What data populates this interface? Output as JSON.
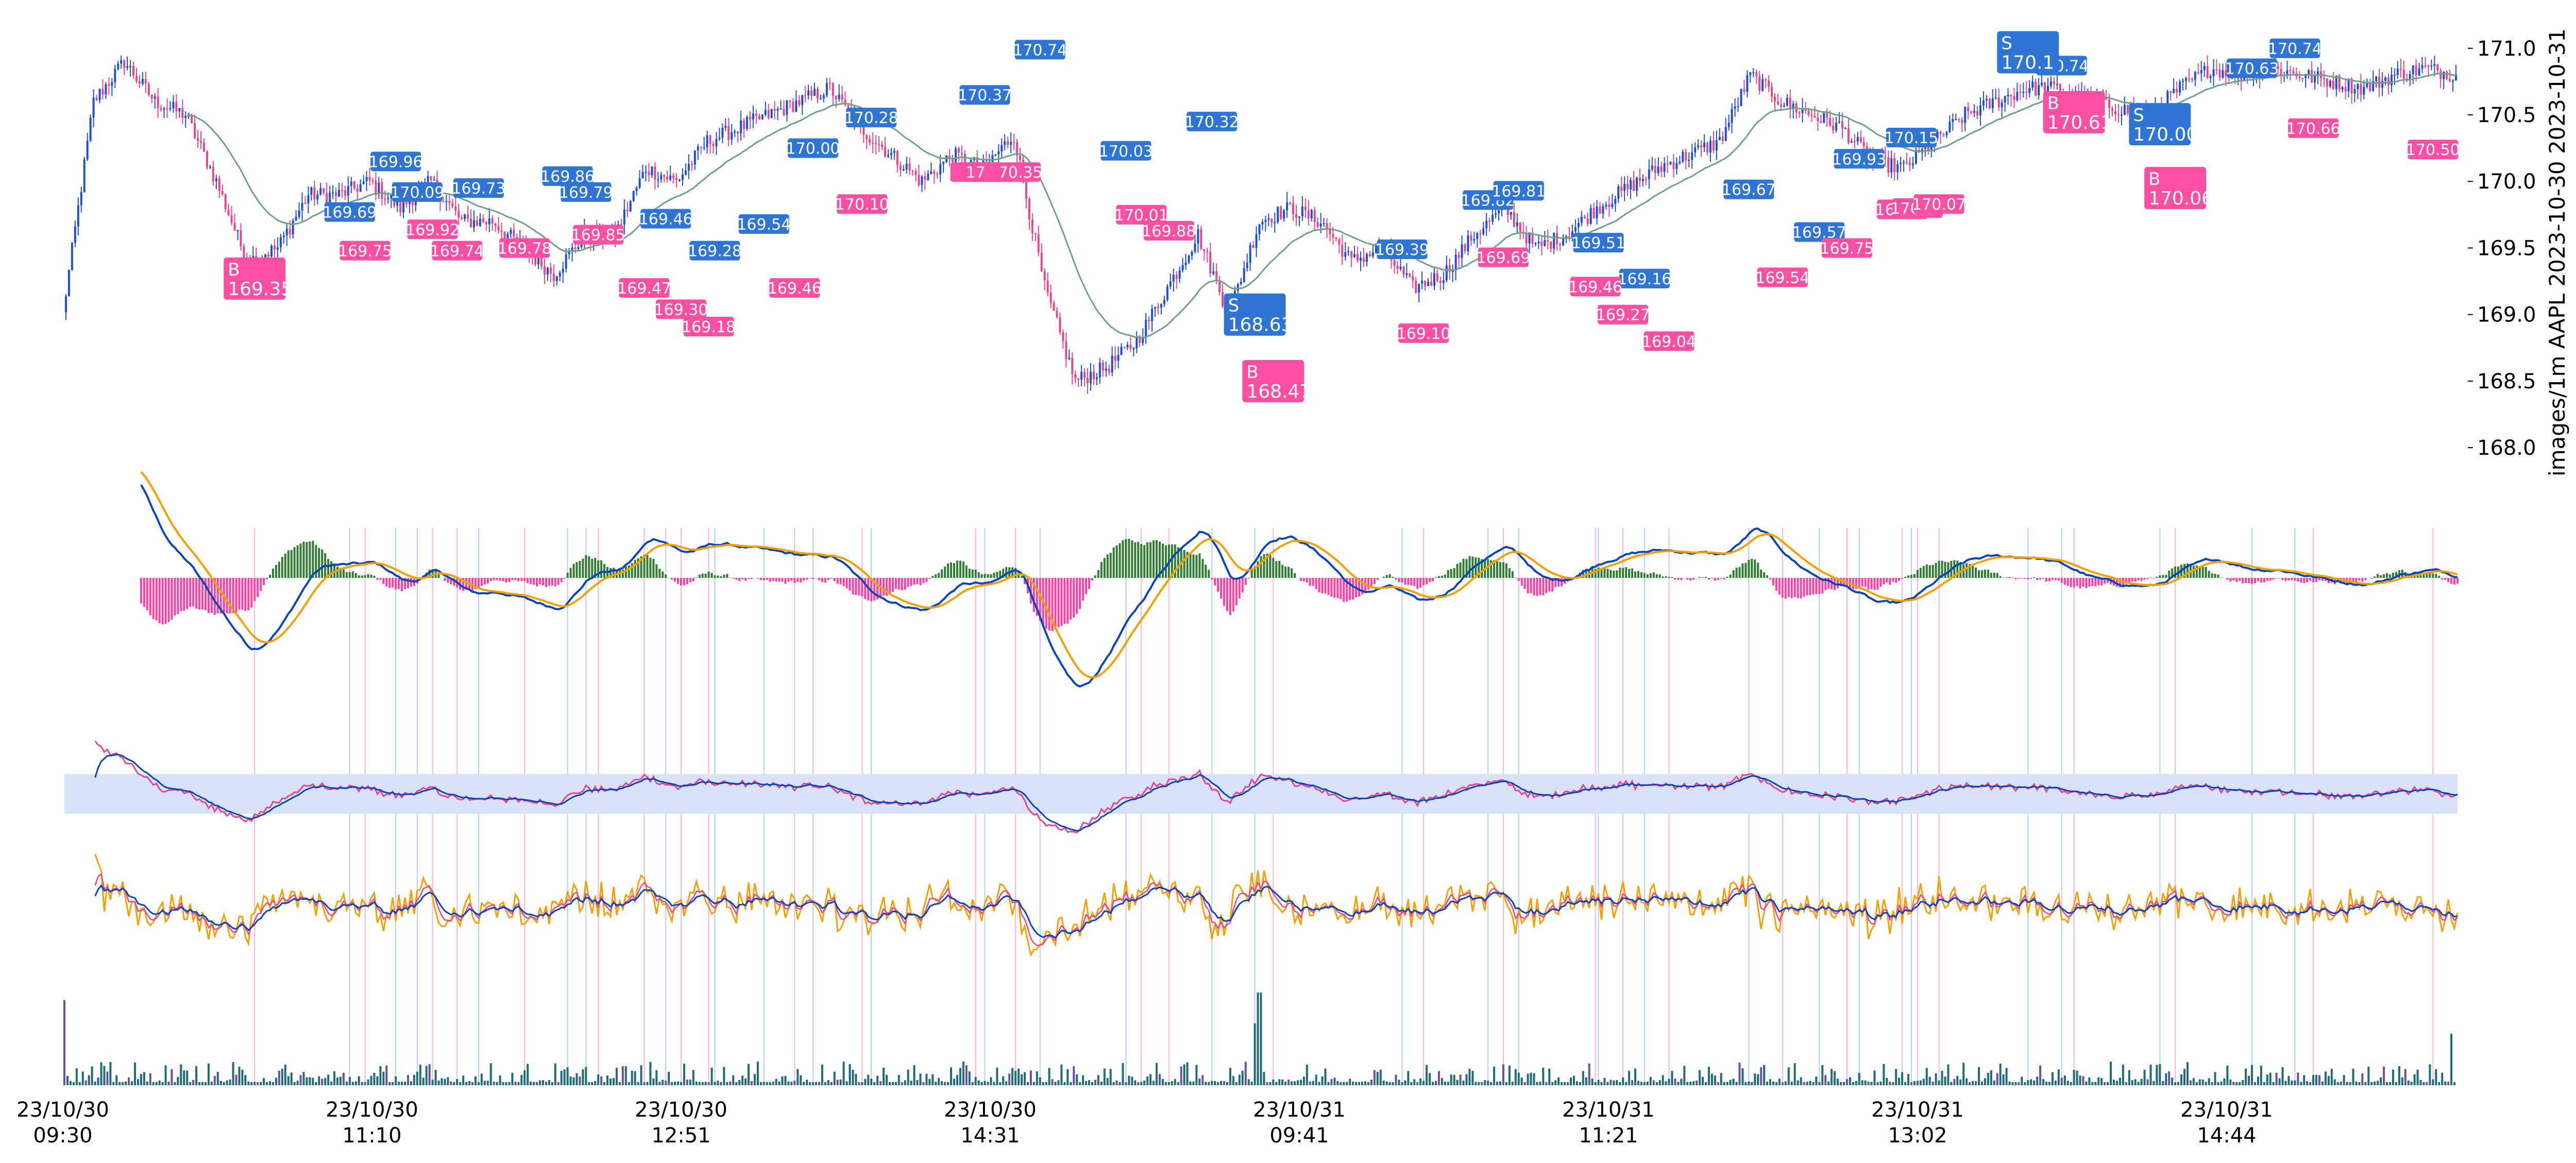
{
  "chart_data": {
    "type": "candlestick",
    "ylabel": "images/1m AAPL 2023-10-30 2023-10-31",
    "y_ticks": [
      "171.0",
      "170.5",
      "170.0",
      "169.5",
      "169.0",
      "168.5",
      "168.0"
    ],
    "ylim": [
      167.9,
      171.15
    ],
    "x_ticks": [
      {
        "date": "23/10/30",
        "time": "09:30"
      },
      {
        "date": "23/10/30",
        "time": "11:10"
      },
      {
        "date": "23/10/30",
        "time": "12:51"
      },
      {
        "date": "23/10/30",
        "time": "14:31"
      },
      {
        "date": "23/10/31",
        "time": "09:41"
      },
      {
        "date": "23/10/31",
        "time": "11:21"
      },
      {
        "date": "23/10/31",
        "time": "13:02"
      },
      {
        "date": "23/10/31",
        "time": "14:44"
      }
    ],
    "price_path": {
      "x": [
        0,
        10,
        20,
        30,
        40,
        50,
        60,
        70,
        80,
        90,
        100,
        110,
        120,
        130,
        140,
        150,
        160,
        170,
        180,
        190,
        200,
        210,
        220,
        230,
        240,
        250,
        260,
        270,
        280,
        290,
        300,
        310,
        320,
        330,
        340,
        350,
        360,
        370,
        380,
        390,
        400,
        410,
        420,
        430,
        440,
        450,
        460,
        470,
        480,
        490,
        500,
        510,
        520,
        530,
        540,
        550,
        560,
        570,
        580,
        590,
        600,
        610,
        620,
        630,
        640,
        650,
        660,
        670,
        680,
        690,
        700,
        710,
        720,
        730,
        740,
        750,
        760,
        770,
        780
      ],
      "close": [
        169.0,
        170.6,
        170.9,
        170.6,
        170.5,
        170.0,
        169.4,
        169.5,
        169.9,
        169.9,
        170.0,
        169.8,
        170.0,
        169.7,
        169.7,
        169.5,
        169.3,
        169.6,
        169.6,
        170.1,
        170.0,
        170.3,
        170.4,
        170.5,
        170.6,
        170.7,
        170.4,
        170.2,
        170.0,
        170.2,
        170.1,
        170.35,
        169.2,
        168.5,
        168.6,
        168.8,
        169.2,
        169.6,
        169.0,
        169.7,
        169.8,
        169.7,
        169.4,
        169.5,
        169.2,
        169.3,
        169.6,
        169.8,
        169.5,
        169.6,
        169.8,
        169.95,
        170.1,
        170.2,
        170.3,
        170.8,
        170.6,
        170.5,
        170.4,
        170.15,
        170.1,
        170.3,
        170.5,
        170.6,
        170.7,
        170.7,
        170.6,
        170.55,
        170.5,
        170.7,
        170.85,
        170.8,
        170.85,
        170.8,
        170.75,
        170.7,
        170.8,
        170.85,
        170.8
      ]
    },
    "price_labels": [
      {
        "value": "170.74",
        "x": 318,
        "price": 170.99,
        "side": "sell"
      },
      {
        "value": "170.28",
        "x": 263,
        "price": 170.48,
        "side": "sell"
      },
      {
        "value": "170.37",
        "x": 300,
        "price": 170.65,
        "side": "sell"
      },
      {
        "value": "170.00",
        "x": 244,
        "price": 170.25,
        "side": "sell"
      },
      {
        "value": "169.96",
        "x": 108,
        "price": 170.15,
        "side": "sell"
      },
      {
        "value": "170.09",
        "x": 115,
        "price": 169.92,
        "side": "sell"
      },
      {
        "value": "169.73",
        "x": 135,
        "price": 169.95,
        "side": "sell"
      },
      {
        "value": "169.86",
        "x": 164,
        "price": 170.04,
        "side": "sell"
      },
      {
        "value": "169.79",
        "x": 170,
        "price": 169.92,
        "side": "sell"
      },
      {
        "value": "169.69",
        "x": 93,
        "price": 169.77,
        "side": "sell"
      },
      {
        "value": "169.46",
        "x": 196,
        "price": 169.72,
        "side": "sell"
      },
      {
        "value": "169.54",
        "x": 228,
        "price": 169.68,
        "side": "sell"
      },
      {
        "value": "169.28",
        "x": 212,
        "price": 169.48,
        "side": "sell"
      },
      {
        "value": "170.03",
        "x": 346,
        "price": 170.23,
        "side": "sell"
      },
      {
        "value": "170.32",
        "x": 374,
        "price": 170.45,
        "side": "sell"
      },
      {
        "value": "169.39",
        "x": 436,
        "price": 169.49,
        "side": "sell"
      },
      {
        "value": "169.82",
        "x": 464,
        "price": 169.86,
        "side": "sell"
      },
      {
        "value": "169.81",
        "x": 474,
        "price": 169.93,
        "side": "sell"
      },
      {
        "value": "169.51",
        "x": 500,
        "price": 169.54,
        "side": "sell"
      },
      {
        "value": "169.16",
        "x": 515,
        "price": 169.27,
        "side": "sell"
      },
      {
        "value": "169.67",
        "x": 549,
        "price": 169.94,
        "side": "sell"
      },
      {
        "value": "169.93",
        "x": 585,
        "price": 170.17,
        "side": "sell"
      },
      {
        "value": "170.15",
        "x": 602,
        "price": 170.33,
        "side": "sell"
      },
      {
        "value": "169.57",
        "x": 572,
        "price": 169.62,
        "side": "sell"
      },
      {
        "value": "170.74",
        "x": 651,
        "price": 170.87,
        "side": "sell"
      },
      {
        "value": "170.63",
        "x": 713,
        "price": 170.85,
        "side": "sell"
      },
      {
        "value": "170.74",
        "x": 727,
        "price": 171.0,
        "side": "sell"
      },
      {
        "value": "169.75",
        "x": 98,
        "price": 169.48,
        "side": "buy"
      },
      {
        "value": "169.92",
        "x": 120,
        "price": 169.64,
        "side": "buy"
      },
      {
        "value": "169.74",
        "x": 128,
        "price": 169.48,
        "side": "buy"
      },
      {
        "value": "169.78",
        "x": 150,
        "price": 169.5,
        "side": "buy"
      },
      {
        "value": "169.85",
        "x": 174,
        "price": 169.6,
        "side": "buy"
      },
      {
        "value": "169.47",
        "x": 189,
        "price": 169.2,
        "side": "buy"
      },
      {
        "value": "169.30",
        "x": 201,
        "price": 169.04,
        "side": "buy"
      },
      {
        "value": "169.18",
        "x": 210,
        "price": 168.91,
        "side": "buy"
      },
      {
        "value": "169.46",
        "x": 238,
        "price": 169.2,
        "side": "buy"
      },
      {
        "value": "170.10",
        "x": 260,
        "price": 169.83,
        "side": "buy"
      },
      {
        "value": "170.35",
        "x": 310,
        "price": 170.07,
        "side": "buy"
      },
      {
        "value": "17",
        "x": 297,
        "price": 170.07,
        "side": "buy"
      },
      {
        "value": "170.01",
        "x": 351,
        "price": 169.75,
        "side": "buy"
      },
      {
        "value": "169.88",
        "x": 360,
        "price": 169.63,
        "side": "buy"
      },
      {
        "value": "169.10",
        "x": 443,
        "price": 168.86,
        "side": "buy"
      },
      {
        "value": "169.69",
        "x": 469,
        "price": 169.43,
        "side": "buy"
      },
      {
        "value": "169.46",
        "x": 499,
        "price": 169.21,
        "side": "buy"
      },
      {
        "value": "169.27",
        "x": 508,
        "price": 169.0,
        "side": "buy"
      },
      {
        "value": "169.04",
        "x": 523,
        "price": 168.8,
        "side": "buy"
      },
      {
        "value": "169.54",
        "x": 560,
        "price": 169.28,
        "side": "buy"
      },
      {
        "value": "169.75",
        "x": 581,
        "price": 169.5,
        "side": "buy"
      },
      {
        "value": "169.84",
        "x": 599,
        "price": 169.79,
        "side": "buy"
      },
      {
        "value": "170.05",
        "x": 604,
        "price": 169.8,
        "side": "buy"
      },
      {
        "value": "170.07",
        "x": 611,
        "price": 169.83,
        "side": "buy"
      },
      {
        "value": "170.66",
        "x": 733,
        "price": 170.4,
        "side": "buy"
      },
      {
        "value": "170.50",
        "x": 772,
        "price": 170.24,
        "side": "buy"
      }
    ],
    "signals": [
      {
        "kind": "B",
        "value": "169.35",
        "x": 62,
        "price": 169.27,
        "side": "buy"
      },
      {
        "kind": "S",
        "value": "168.63",
        "x": 388,
        "price": 169.0,
        "side": "sell"
      },
      {
        "kind": "B",
        "value": "168.47",
        "x": 394,
        "price": 168.5,
        "side": "buy"
      },
      {
        "kind": "S",
        "value": "170.1",
        "x": 640,
        "price": 170.97,
        "side": "sell"
      },
      {
        "kind": "B",
        "value": "170.61",
        "x": 655,
        "price": 170.52,
        "side": "buy"
      },
      {
        "kind": "S",
        "value": "170.00",
        "x": 683,
        "price": 170.43,
        "side": "sell"
      },
      {
        "kind": "B",
        "value": "170.06",
        "x": 688,
        "price": 169.95,
        "side": "buy"
      }
    ],
    "colors": {
      "up": "#1f4fd1",
      "down": "#e8458f",
      "sell_tag": "#2f75d6",
      "buy_tag": "#ff4fa3",
      "ma": "#6fa08a",
      "macd": "#0b46b8",
      "signal": "#f5a000",
      "hist_pos": "#2e7d32",
      "hist_neg": "#ff3fa4",
      "band": "#d7e2f6",
      "volume": "#1f6b79",
      "volume_alt": "#6a4fa3"
    }
  }
}
